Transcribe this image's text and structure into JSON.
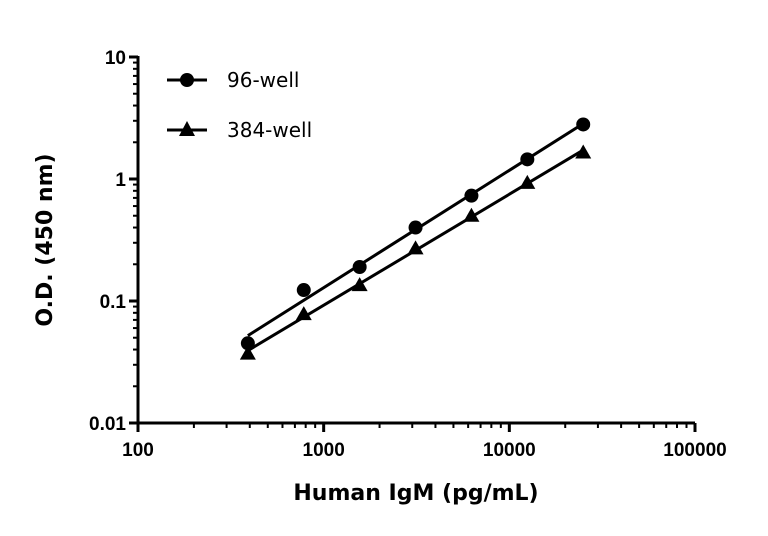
{
  "chart_data": {
    "type": "line",
    "title": "",
    "xlabel": "Human IgM (pg/mL)",
    "ylabel": "O.D. (450 nm)",
    "xscale": "log",
    "yscale": "log",
    "xlim": [
      100,
      100000
    ],
    "ylim": [
      0.01,
      10
    ],
    "xticks": [
      "100",
      "1000",
      "10000",
      "100000"
    ],
    "yticks": [
      "0.01",
      "0.1",
      "1",
      "10"
    ],
    "grid": false,
    "legend_position": "top-left",
    "x": [
      390.6,
      781.3,
      1562.5,
      3125,
      6250,
      12500,
      25000
    ],
    "series": [
      {
        "name": "96-well",
        "marker": "circle",
        "color": "#000000",
        "values": [
          0.045,
          0.123,
          0.19,
          0.4,
          0.73,
          1.45,
          2.8
        ]
      },
      {
        "name": "384-well",
        "marker": "triangle",
        "color": "#000000",
        "values": [
          0.037,
          0.078,
          0.135,
          0.27,
          0.5,
          0.93,
          1.65
        ]
      }
    ]
  }
}
